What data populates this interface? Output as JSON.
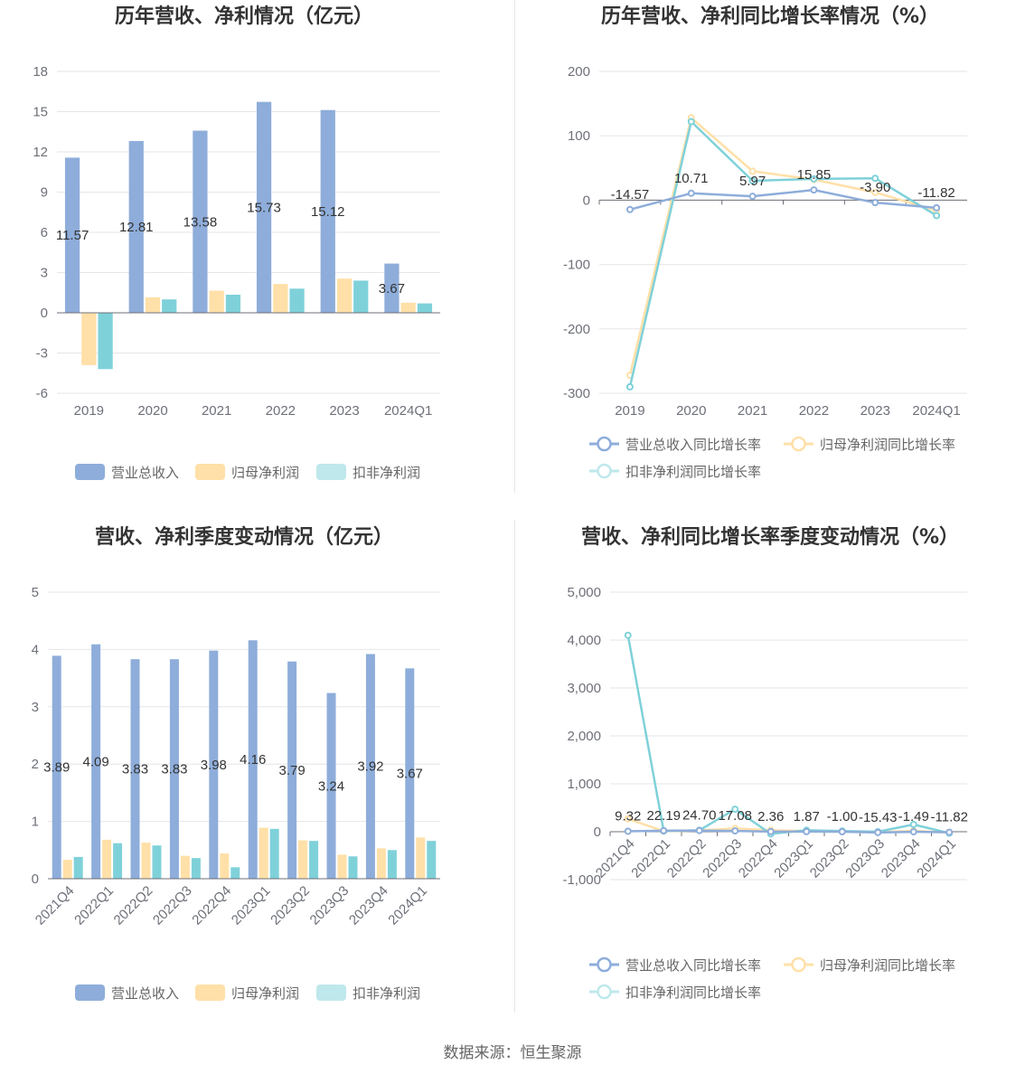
{
  "source": "数据来源：恒生聚源",
  "colors": {
    "revenue": "#8eadda",
    "net_profit": "#ffe0a8",
    "deducted": "#7fd1d9",
    "deducted_legend": "#bfe8ec",
    "grid": "#e6e6ea",
    "axis": "#6e7079"
  },
  "chart_data": [
    {
      "id": "annual-values",
      "type": "bar",
      "title": "历年营收、净利情况（亿元）",
      "categories": [
        "2019",
        "2020",
        "2021",
        "2022",
        "2023",
        "2024Q1"
      ],
      "yticks": [
        "18",
        "15",
        "12",
        "9",
        "6",
        "3",
        "0",
        "-3",
        "-6"
      ],
      "ylim": [
        -6,
        18
      ],
      "series": [
        {
          "name": "营业总收入",
          "values": [
            11.57,
            12.81,
            13.58,
            15.73,
            15.12,
            3.67
          ],
          "labels": [
            "11.57",
            "12.81",
            "13.58",
            "15.73",
            "15.12",
            "3.67"
          ]
        },
        {
          "name": "归母净利润",
          "values": [
            -3.9,
            1.15,
            1.65,
            2.15,
            2.55,
            0.75
          ]
        },
        {
          "name": "扣非净利润",
          "values": [
            -4.2,
            1.0,
            1.35,
            1.8,
            2.4,
            0.7
          ]
        }
      ]
    },
    {
      "id": "annual-growth",
      "type": "line",
      "title": "历年营收、净利同比增长率情况（%）",
      "categories": [
        "2019",
        "2020",
        "2021",
        "2022",
        "2023",
        "2024Q1"
      ],
      "yticks": [
        "200",
        "100",
        "0",
        "-100",
        "-200",
        "-300"
      ],
      "ylim": [
        -300,
        200
      ],
      "series": [
        {
          "name": "营业总收入同比增长率",
          "values": [
            -14.57,
            10.71,
            5.97,
            15.85,
            -3.9,
            -11.82
          ],
          "labels": [
            "-14.57",
            "10.71",
            "5.97",
            "15.85",
            "-3.90",
            "-11.82"
          ]
        },
        {
          "name": "归母净利润同比增长率",
          "values": [
            -272,
            128,
            45,
            32,
            12,
            -16
          ]
        },
        {
          "name": "扣非净利润同比增长率",
          "values": [
            -290,
            122,
            30,
            33,
            34,
            -24
          ]
        }
      ]
    },
    {
      "id": "quarterly-values",
      "type": "bar",
      "title": "营收、净利季度变动情况（亿元）",
      "categories": [
        "2021Q4",
        "2022Q1",
        "2022Q2",
        "2022Q3",
        "2022Q4",
        "2023Q1",
        "2023Q2",
        "2023Q3",
        "2023Q4",
        "2024Q1"
      ],
      "yticks": [
        "5",
        "4",
        "3",
        "2",
        "1",
        "0"
      ],
      "ylim": [
        0,
        5
      ],
      "series": [
        {
          "name": "营业总收入",
          "values": [
            3.89,
            4.09,
            3.83,
            3.83,
            3.98,
            4.16,
            3.79,
            3.24,
            3.92,
            3.67
          ],
          "labels": [
            "3.89",
            "4.09",
            "3.83",
            "3.83",
            "3.98",
            "4.16",
            "3.79",
            "3.24",
            "3.92",
            "3.67"
          ]
        },
        {
          "name": "归母净利润",
          "values": [
            0.33,
            0.68,
            0.63,
            0.4,
            0.44,
            0.89,
            0.67,
            0.42,
            0.53,
            0.72
          ]
        },
        {
          "name": "扣非净利润",
          "values": [
            0.38,
            0.62,
            0.58,
            0.36,
            0.2,
            0.87,
            0.66,
            0.39,
            0.5,
            0.66
          ]
        }
      ]
    },
    {
      "id": "quarterly-growth",
      "type": "line",
      "title": "营收、净利同比增长率季度变动情况（%）",
      "categories": [
        "2021Q4",
        "2022Q1",
        "2022Q2",
        "2022Q3",
        "2022Q4",
        "2023Q1",
        "2023Q2",
        "2023Q3",
        "2023Q4",
        "2024Q1"
      ],
      "yticks": [
        "5,000",
        "4,000",
        "3,000",
        "2,000",
        "1,000",
        "0",
        "-1,000"
      ],
      "ylim": [
        -1000,
        5000
      ],
      "series": [
        {
          "name": "营业总收入同比增长率",
          "values": [
            9.32,
            22.19,
            24.7,
            17.08,
            2.36,
            1.87,
            -1.0,
            -15.43,
            -1.49,
            -11.82
          ],
          "labels": [
            "9.32",
            "22.19",
            "24.70",
            "17.08",
            "2.36",
            "1.87",
            "-1.00",
            "-15.43",
            "-1.49",
            "-11.82"
          ]
        },
        {
          "name": "归母净利润同比增长率",
          "values": [
            270,
            10,
            25,
            70,
            30,
            15,
            5,
            -10,
            20,
            -20
          ]
        },
        {
          "name": "扣非净利润同比增长率",
          "values": [
            4100,
            15,
            30,
            470,
            -45,
            30,
            15,
            0,
            150,
            -30
          ]
        }
      ]
    }
  ]
}
